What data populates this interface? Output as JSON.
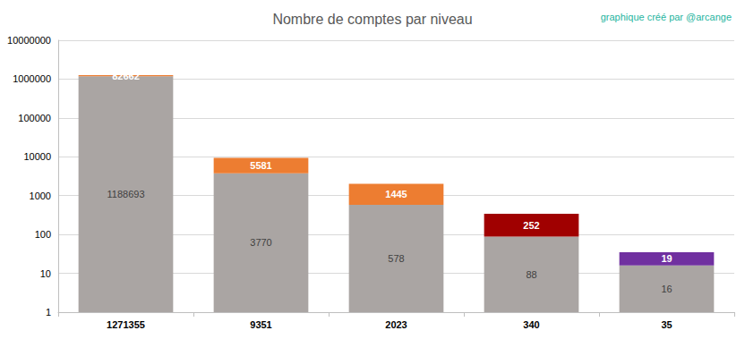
{
  "chart_data": {
    "type": "bar",
    "title": "Nombre de comptes par niveau",
    "annotations": [
      "graphique créé par @arcange"
    ],
    "categories": [
      "1271355",
      "9351",
      "2023",
      "340",
      "35"
    ],
    "stacked": true,
    "log": "y",
    "grid": true,
    "data_labels": true,
    "ylim": [
      1,
      10000000
    ],
    "yticks": [
      1,
      10,
      100,
      1000,
      10000,
      100000,
      1000000,
      10000000
    ],
    "series": [
      {
        "color": "#aaa5a3",
        "values": [
          1188693,
          3770,
          578,
          88,
          16
        ]
      },
      {
        "colors": [
          "#ed7d31",
          "#ed7d31",
          "#ed7d31",
          "#a00000",
          "#7030a0"
        ],
        "values": [
          82662,
          5581,
          1445,
          252,
          19
        ]
      }
    ]
  }
}
